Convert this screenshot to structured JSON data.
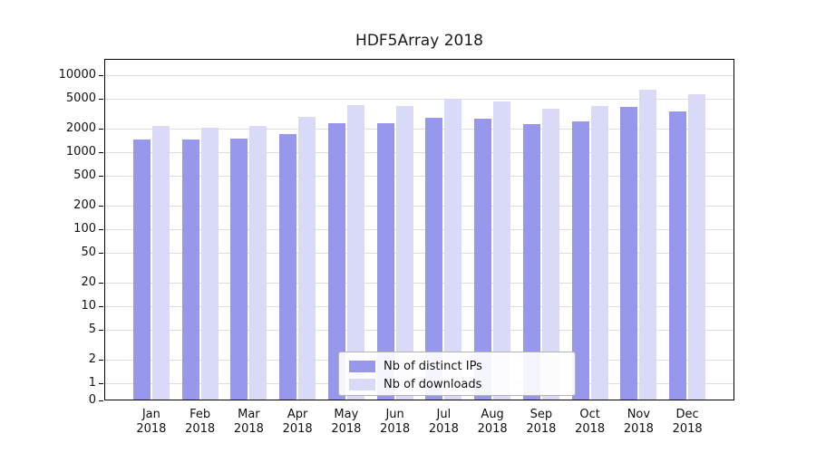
{
  "chart_data": {
    "type": "bar",
    "title": "HDF5Array 2018",
    "categories": [
      "Jan",
      "Feb",
      "Mar",
      "Apr",
      "May",
      "Jun",
      "Jul",
      "Aug",
      "Sep",
      "Oct",
      "Nov",
      "Dec"
    ],
    "year": "2018",
    "series": [
      {
        "name": "Nb of distinct IPs",
        "color": "#9797ec",
        "values": [
          1450,
          1450,
          1500,
          1700,
          2400,
          2350,
          2800,
          2700,
          2300,
          2500,
          3900,
          3400
        ]
      },
      {
        "name": "Nb of downloads",
        "color": "#d9d9f8",
        "values": [
          2200,
          2100,
          2200,
          2900,
          4100,
          4000,
          4900,
          4500,
          3700,
          4000,
          6500,
          5700
        ]
      }
    ],
    "y_ticks": [
      0,
      1,
      2,
      5,
      10,
      20,
      50,
      100,
      200,
      500,
      1000,
      2000,
      5000,
      10000
    ],
    "y_scale": "log",
    "ylim": [
      0,
      10000
    ],
    "xlabel": "",
    "ylabel": "",
    "grid": true,
    "legend_position": "bottom-center"
  }
}
